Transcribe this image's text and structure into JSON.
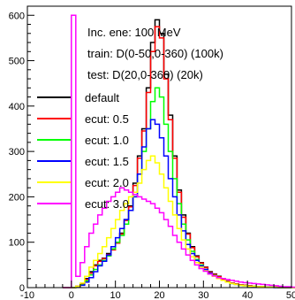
{
  "chart_data": {
    "type": "line",
    "step": true,
    "xlim": [
      -10,
      50
    ],
    "ylim": [
      0,
      620
    ],
    "x_ticks": [
      -10,
      0,
      10,
      20,
      30,
      40,
      50
    ],
    "y_ticks": [
      0,
      100,
      200,
      300,
      400,
      500,
      600
    ],
    "annotations": [
      "Inc. ene: 100 MeV",
      "train: D(0-50,0-360) (100k)",
      "test: D(20,0-360) (20k)"
    ],
    "legend_position": "left",
    "x": [
      -2,
      -1,
      0,
      1,
      2,
      3,
      4,
      5,
      6,
      7,
      8,
      9,
      10,
      11,
      12,
      13,
      14,
      15,
      16,
      17,
      18,
      19,
      20,
      21,
      22,
      23,
      24,
      25,
      26,
      27,
      28,
      29,
      30,
      31,
      32,
      33,
      34,
      35,
      36,
      37,
      38,
      39,
      40,
      41,
      42,
      43,
      44,
      45,
      46,
      47,
      48,
      49,
      50
    ],
    "series": [
      {
        "name": "default",
        "color": "#000000",
        "values": [
          0,
          0,
          0,
          3,
          8,
          20,
          35,
          50,
          60,
          65,
          75,
          85,
          100,
          120,
          150,
          180,
          230,
          290,
          350,
          440,
          540,
          590,
          560,
          470,
          380,
          290,
          215,
          160,
          120,
          90,
          70,
          55,
          45,
          35,
          30,
          25,
          18,
          14,
          10,
          8,
          6,
          5,
          4,
          3,
          2,
          2,
          1,
          1,
          1,
          0,
          0,
          0,
          0
        ]
      },
      {
        "name": "ecut: 0.5",
        "color": "#ff0000",
        "values": [
          0,
          0,
          0,
          3,
          7,
          18,
          32,
          48,
          58,
          64,
          73,
          83,
          98,
          118,
          148,
          178,
          225,
          285,
          345,
          430,
          520,
          575,
          550,
          460,
          370,
          285,
          210,
          155,
          118,
          88,
          68,
          54,
          44,
          34,
          29,
          24,
          17,
          13,
          10,
          8,
          6,
          5,
          4,
          3,
          2,
          2,
          1,
          1,
          1,
          0,
          0,
          0,
          0
        ]
      },
      {
        "name": "ecut: 1.0",
        "color": "#00ff00",
        "values": [
          0,
          0,
          0,
          2,
          6,
          15,
          28,
          40,
          50,
          60,
          70,
          85,
          100,
          115,
          140,
          170,
          200,
          250,
          300,
          350,
          410,
          440,
          420,
          360,
          300,
          240,
          185,
          140,
          105,
          80,
          62,
          50,
          40,
          32,
          27,
          22,
          16,
          12,
          9,
          7,
          5,
          4,
          3,
          3,
          2,
          2,
          1,
          1,
          1,
          0,
          0,
          0,
          0
        ]
      },
      {
        "name": "ecut: 1.5",
        "color": "#0000ff",
        "values": [
          0,
          0,
          0,
          2,
          5,
          12,
          22,
          35,
          48,
          58,
          72,
          90,
          110,
          130,
          150,
          170,
          200,
          250,
          310,
          350,
          370,
          360,
          330,
          290,
          240,
          200,
          160,
          125,
          95,
          75,
          60,
          48,
          40,
          32,
          26,
          21,
          16,
          12,
          9,
          7,
          5,
          4,
          3,
          2,
          2,
          1,
          1,
          1,
          0,
          0,
          0,
          0,
          0
        ]
      },
      {
        "name": "ecut: 2.0",
        "color": "#ffff00",
        "values": [
          0,
          0,
          0,
          3,
          10,
          25,
          45,
          60,
          75,
          90,
          110,
          130,
          150,
          170,
          185,
          200,
          210,
          230,
          260,
          280,
          290,
          275,
          250,
          220,
          190,
          160,
          130,
          105,
          85,
          68,
          55,
          45,
          37,
          30,
          25,
          20,
          16,
          12,
          9,
          7,
          5,
          4,
          3,
          3,
          2,
          2,
          1,
          1,
          1,
          0,
          0,
          0,
          0
        ]
      },
      {
        "name": "ecut: 3.0",
        "color": "#ff00ff",
        "values": [
          0,
          0,
          600,
          25,
          55,
          90,
          120,
          140,
          160,
          175,
          190,
          200,
          210,
          220,
          215,
          210,
          205,
          200,
          195,
          190,
          185,
          175,
          165,
          150,
          135,
          115,
          100,
          85,
          72,
          60,
          50,
          42,
          36,
          30,
          26,
          22,
          20,
          18,
          16,
          14,
          12,
          11,
          10,
          9,
          8,
          7,
          6,
          5,
          4,
          3,
          2,
          2,
          1
        ]
      }
    ]
  }
}
